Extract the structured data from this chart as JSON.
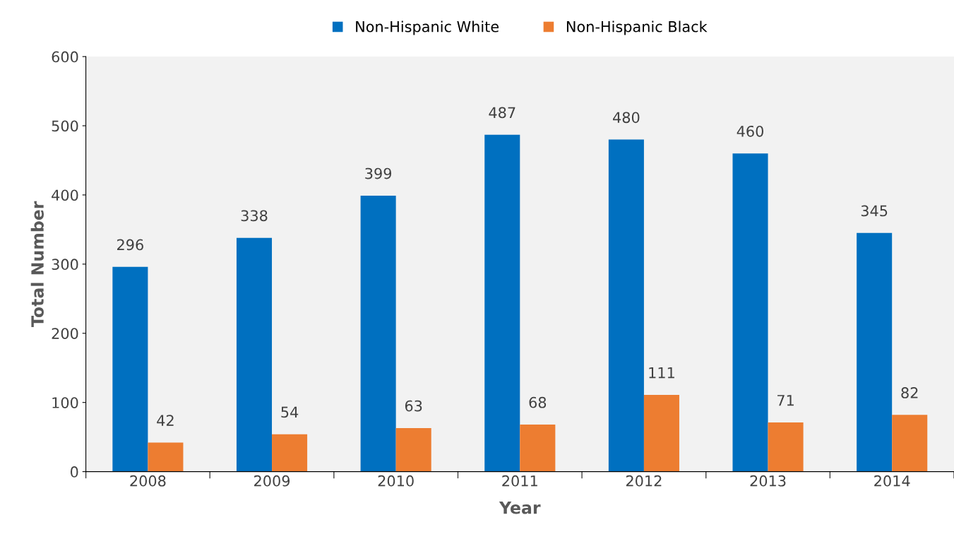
{
  "chart_data": {
    "type": "bar",
    "xlabel": "Year",
    "ylabel": "Total Number",
    "categories": [
      "2008",
      "2009",
      "2010",
      "2011",
      "2012",
      "2013",
      "2014"
    ],
    "series": [
      {
        "name": "Non-Hispanic White",
        "color": "#0070c0",
        "values": [
          296,
          338,
          399,
          487,
          480,
          460,
          345
        ]
      },
      {
        "name": "Non-Hispanic Black",
        "color": "#ed7d31",
        "values": [
          42,
          54,
          63,
          68,
          111,
          71,
          82
        ]
      }
    ],
    "ylim": [
      0,
      600
    ],
    "yticks": [
      0,
      100,
      200,
      300,
      400,
      500,
      600
    ],
    "data_labels": true,
    "legend": "top",
    "grid": false
  }
}
